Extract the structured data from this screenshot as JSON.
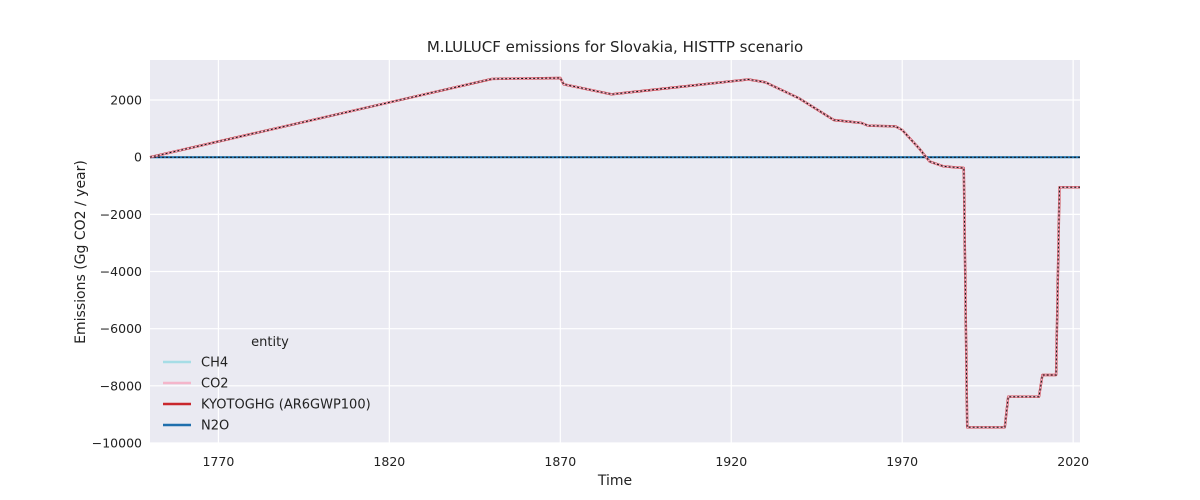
{
  "chart_data": {
    "type": "line",
    "title": "M.LULUCF emissions for Slovakia, HISTTP scenario",
    "xlabel": "Time",
    "ylabel": "Emissions (Gg CO2 / year)",
    "xlim": [
      1750,
      2022
    ],
    "ylim": [
      -10000,
      3400
    ],
    "x_ticks": [
      1770,
      1820,
      1870,
      1920,
      1970,
      2020
    ],
    "y_ticks": [
      2000,
      0,
      -2000,
      -4000,
      -6000,
      -8000,
      -10000
    ],
    "grid": true,
    "legend": {
      "title": "entity",
      "placement": "lower-left",
      "entries": [
        {
          "name": "CH4",
          "color": "#a6dde6"
        },
        {
          "name": "CO2",
          "color": "#f4b6cb"
        },
        {
          "name": "KYOTOGHG (AR6GWP100)",
          "color": "#c9272d"
        },
        {
          "name": "N2O",
          "color": "#1f6fad"
        }
      ]
    },
    "series": [
      {
        "name": "CH4",
        "color": "#a6dde6",
        "x": [
          1750,
          2022
        ],
        "y": [
          0,
          0
        ]
      },
      {
        "name": "N2O",
        "color": "#1f6fad",
        "x": [
          1750,
          2022
        ],
        "y": [
          0,
          0
        ]
      },
      {
        "name": "KYOTOGHG (AR6GWP100)",
        "color": "#c9272d",
        "x": [
          1750,
          1850,
          1870,
          1871,
          1885,
          1925,
          1930,
          1940,
          1950,
          1958,
          1960,
          1968,
          1970,
          1975,
          1978,
          1982,
          1985,
          1988,
          1989,
          2000,
          2001,
          2010,
          2011,
          2015,
          2016,
          2022
        ],
        "y": [
          0,
          2740,
          2770,
          2550,
          2200,
          2720,
          2620,
          2050,
          1300,
          1200,
          1100,
          1080,
          950,
          300,
          -150,
          -320,
          -350,
          -380,
          -9450,
          -9450,
          -8380,
          -8380,
          -7620,
          -7620,
          -1050,
          -1050
        ]
      },
      {
        "name": "CO2",
        "color": "#f4b6cb",
        "x": [
          1750,
          1850,
          1870,
          1871,
          1885,
          1925,
          1930,
          1940,
          1950,
          1958,
          1960,
          1968,
          1970,
          1975,
          1978,
          1982,
          1985,
          1988,
          1989,
          2000,
          2001,
          2010,
          2011,
          2015,
          2016,
          2022
        ],
        "y": [
          0,
          2740,
          2770,
          2550,
          2200,
          2720,
          2620,
          2050,
          1300,
          1200,
          1100,
          1080,
          950,
          300,
          -150,
          -320,
          -350,
          -380,
          -9450,
          -9450,
          -8380,
          -8380,
          -7620,
          -7620,
          -1050,
          -1050
        ]
      }
    ]
  }
}
